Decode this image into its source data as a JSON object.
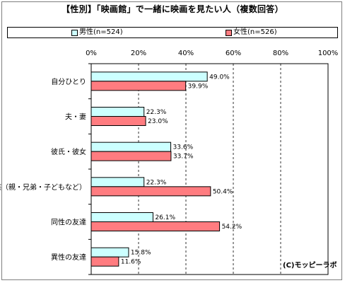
{
  "chart_data": {
    "type": "bar",
    "orientation": "horizontal",
    "title": "【性別】「映画館」で一緒に映画を見たい人（複数回答）",
    "categories": [
      "自分ひとり",
      "夫・妻",
      "彼氏・彼女",
      "家族（親・兄弟・子どもなど）",
      "同性の友達",
      "異性の友達"
    ],
    "series": [
      {
        "name": "男性(n=524)",
        "color": "#ccffff",
        "values": [
          49.0,
          22.3,
          33.6,
          22.3,
          26.1,
          15.8
        ],
        "labels": [
          "49.0%",
          "22.3%",
          "33.6%",
          "22.3%",
          "26.1%",
          "15.8%"
        ]
      },
      {
        "name": "女性(n=526)",
        "color": "#ff7c80",
        "values": [
          39.9,
          23.0,
          33.7,
          50.4,
          54.2,
          11.6
        ],
        "labels": [
          "39.9%",
          "23.0%",
          "33.7%",
          "50.4%",
          "54.2%",
          "11.6%"
        ]
      }
    ],
    "xlim": [
      0,
      100
    ],
    "xticks": [
      0,
      20,
      40,
      60,
      80,
      100
    ],
    "xtick_labels": [
      "0%",
      "20%",
      "40%",
      "60%",
      "80%",
      "100%"
    ],
    "grid": true,
    "legend_position": "top",
    "xlabel": "",
    "ylabel": ""
  },
  "copyright": "(C)モッピーラボ"
}
